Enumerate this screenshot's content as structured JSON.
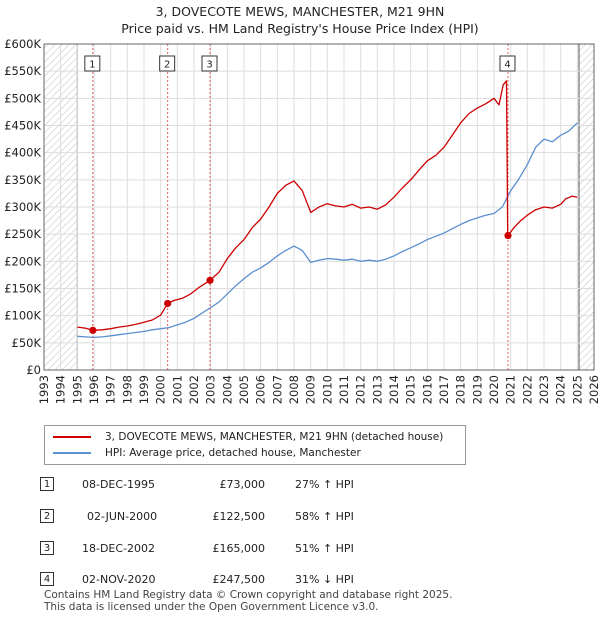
{
  "header": {
    "title": "3, DOVECOTE MEWS, MANCHESTER, M21 9HN",
    "subtitle": "Price paid vs. HM Land Registry's House Price Index (HPI)"
  },
  "chart_data": {
    "type": "line",
    "title": "3, DOVECOTE MEWS, MANCHESTER, M21 9HN",
    "subtitle": "Price paid vs. HM Land Registry's House Price Index (HPI)",
    "xlim": [
      1993,
      2026
    ],
    "ylim": [
      0,
      600000
    ],
    "x_ticks": [
      1993,
      1994,
      1995,
      1996,
      1997,
      1998,
      1999,
      2000,
      2001,
      2002,
      2003,
      2004,
      2005,
      2006,
      2007,
      2008,
      2009,
      2010,
      2011,
      2012,
      2013,
      2014,
      2015,
      2016,
      2017,
      2018,
      2019,
      2020,
      2021,
      2022,
      2023,
      2024,
      2025,
      2026
    ],
    "y_ticks": [
      0,
      50000,
      100000,
      150000,
      200000,
      250000,
      300000,
      350000,
      400000,
      450000,
      500000,
      550000,
      600000
    ],
    "y_tick_labels": [
      "£0",
      "£50K",
      "£100K",
      "£150K",
      "£200K",
      "£250K",
      "£300K",
      "£350K",
      "£400K",
      "£450K",
      "£500K",
      "£550K",
      "£600K"
    ],
    "hatched_ranges": [
      [
        1993,
        1995.0
      ],
      [
        2025.1,
        2026
      ]
    ],
    "series": [
      {
        "name": "3, DOVECOTE MEWS, MANCHESTER, M21 9HN (detached house)",
        "color": "#cc0000",
        "points": [
          [
            1995.0,
            79000
          ],
          [
            1995.5,
            77000
          ],
          [
            1995.93,
            73000
          ],
          [
            1996.5,
            74000
          ],
          [
            1997,
            76000
          ],
          [
            1997.5,
            79000
          ],
          [
            1998,
            81000
          ],
          [
            1998.5,
            84000
          ],
          [
            1999,
            88000
          ],
          [
            1999.5,
            92000
          ],
          [
            2000.0,
            101000
          ],
          [
            2000.42,
            122500
          ],
          [
            2000.8,
            128000
          ],
          [
            2001.3,
            132000
          ],
          [
            2001.8,
            140000
          ],
          [
            2002.3,
            152000
          ],
          [
            2002.96,
            165000
          ],
          [
            2003.5,
            180000
          ],
          [
            2004,
            205000
          ],
          [
            2004.5,
            225000
          ],
          [
            2005,
            240000
          ],
          [
            2005.5,
            262000
          ],
          [
            2006,
            278000
          ],
          [
            2006.5,
            300000
          ],
          [
            2007,
            325000
          ],
          [
            2007.5,
            340000
          ],
          [
            2008,
            348000
          ],
          [
            2008.5,
            330000
          ],
          [
            2009,
            290000
          ],
          [
            2009.5,
            300000
          ],
          [
            2010,
            306000
          ],
          [
            2010.5,
            302000
          ],
          [
            2011,
            300000
          ],
          [
            2011.5,
            305000
          ],
          [
            2012,
            298000
          ],
          [
            2012.5,
            300000
          ],
          [
            2013,
            296000
          ],
          [
            2013.5,
            304000
          ],
          [
            2014,
            318000
          ],
          [
            2014.5,
            335000
          ],
          [
            2015,
            350000
          ],
          [
            2015.5,
            368000
          ],
          [
            2016,
            385000
          ],
          [
            2016.5,
            395000
          ],
          [
            2017,
            410000
          ],
          [
            2017.5,
            432000
          ],
          [
            2018,
            455000
          ],
          [
            2018.5,
            472000
          ],
          [
            2019,
            482000
          ],
          [
            2019.5,
            490000
          ],
          [
            2020,
            500000
          ],
          [
            2020.3,
            488000
          ],
          [
            2020.55,
            525000
          ],
          [
            2020.75,
            532000
          ],
          [
            2020.82,
            250000
          ],
          [
            2020.84,
            247500
          ],
          [
            2021.2,
            262000
          ],
          [
            2021.6,
            275000
          ],
          [
            2022,
            285000
          ],
          [
            2022.5,
            295000
          ],
          [
            2023,
            300000
          ],
          [
            2023.5,
            298000
          ],
          [
            2024,
            305000
          ],
          [
            2024.3,
            315000
          ],
          [
            2024.7,
            320000
          ],
          [
            2025,
            318000
          ]
        ]
      },
      {
        "name": "HPI: Average price, detached house, Manchester",
        "color": "#5b8fcf",
        "points": [
          [
            1995.0,
            62000
          ],
          [
            1995.5,
            61000
          ],
          [
            1996,
            60000
          ],
          [
            1996.5,
            61000
          ],
          [
            1997,
            63000
          ],
          [
            1997.5,
            65000
          ],
          [
            1998,
            67000
          ],
          [
            1998.5,
            69000
          ],
          [
            1999,
            71000
          ],
          [
            1999.5,
            74000
          ],
          [
            2000,
            76000
          ],
          [
            2000.5,
            78000
          ],
          [
            2001,
            83000
          ],
          [
            2001.5,
            88000
          ],
          [
            2002,
            95000
          ],
          [
            2002.5,
            105000
          ],
          [
            2003,
            115000
          ],
          [
            2003.5,
            125000
          ],
          [
            2004,
            140000
          ],
          [
            2004.5,
            155000
          ],
          [
            2005,
            168000
          ],
          [
            2005.5,
            180000
          ],
          [
            2006,
            188000
          ],
          [
            2006.5,
            198000
          ],
          [
            2007,
            210000
          ],
          [
            2007.5,
            220000
          ],
          [
            2008,
            228000
          ],
          [
            2008.5,
            220000
          ],
          [
            2009,
            198000
          ],
          [
            2009.5,
            202000
          ],
          [
            2010,
            205000
          ],
          [
            2010.5,
            204000
          ],
          [
            2011,
            202000
          ],
          [
            2011.5,
            204000
          ],
          [
            2012,
            200000
          ],
          [
            2012.5,
            202000
          ],
          [
            2013,
            200000
          ],
          [
            2013.5,
            204000
          ],
          [
            2014,
            210000
          ],
          [
            2014.5,
            218000
          ],
          [
            2015,
            225000
          ],
          [
            2015.5,
            232000
          ],
          [
            2016,
            240000
          ],
          [
            2016.5,
            246000
          ],
          [
            2017,
            252000
          ],
          [
            2017.5,
            260000
          ],
          [
            2018,
            268000
          ],
          [
            2018.5,
            275000
          ],
          [
            2019,
            280000
          ],
          [
            2019.5,
            285000
          ],
          [
            2020,
            288000
          ],
          [
            2020.5,
            300000
          ],
          [
            2021,
            330000
          ],
          [
            2021.5,
            352000
          ],
          [
            2022,
            378000
          ],
          [
            2022.5,
            410000
          ],
          [
            2023,
            425000
          ],
          [
            2023.5,
            420000
          ],
          [
            2024,
            432000
          ],
          [
            2024.5,
            440000
          ],
          [
            2025,
            455000
          ]
        ]
      }
    ],
    "transactions": [
      {
        "label": "1",
        "x": 1995.93,
        "y": 73000
      },
      {
        "label": "2",
        "x": 2000.42,
        "y": 122500
      },
      {
        "label": "3",
        "x": 2002.96,
        "y": 165000
      },
      {
        "label": "4",
        "x": 2020.84,
        "y": 247500
      }
    ]
  },
  "legend": {
    "items": [
      {
        "label": "3, DOVECOTE MEWS, MANCHESTER, M21 9HN (detached house)",
        "color": "#cc0000"
      },
      {
        "label": "HPI: Average price, detached house, Manchester",
        "color": "#5b8fcf"
      }
    ]
  },
  "sales": [
    {
      "num": "1",
      "date": "08-DEC-1995",
      "price": "£73,000",
      "hpi": "27% ↑ HPI"
    },
    {
      "num": "2",
      "date": "02-JUN-2000",
      "price": "£122,500",
      "hpi": "58% ↑ HPI"
    },
    {
      "num": "3",
      "date": "18-DEC-2002",
      "price": "£165,000",
      "hpi": "51% ↑ HPI"
    },
    {
      "num": "4",
      "date": "02-NOV-2020",
      "price": "£247,500",
      "hpi": "31% ↓ HPI"
    }
  ],
  "footer": {
    "line1": "Contains HM Land Registry data © Crown copyright and database right 2025.",
    "line2": "This data is licensed under the Open Government Licence v3.0."
  }
}
